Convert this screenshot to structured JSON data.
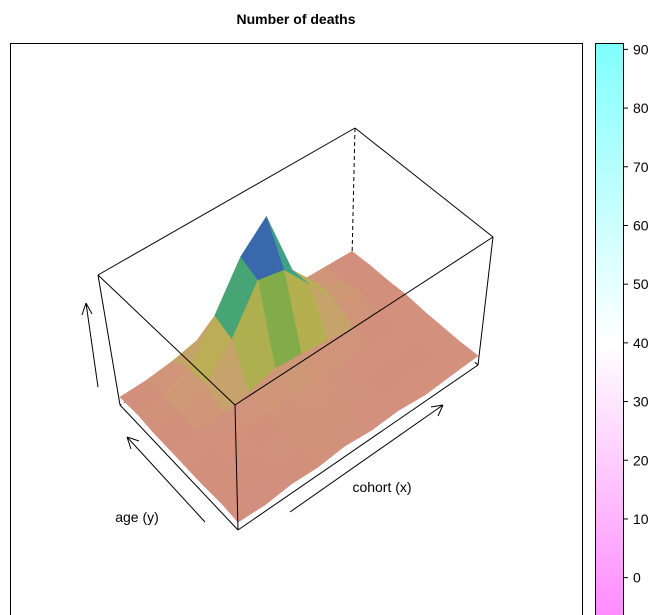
{
  "chart_data": {
    "type": "surface",
    "title": "Number of deaths",
    "xlabel": "cohort (x)",
    "ylabel": "age (y)",
    "z": [
      [
        1,
        0,
        2,
        1,
        3,
        1,
        2,
        0,
        1,
        2
      ],
      [
        2,
        1,
        1,
        3,
        2,
        2,
        1,
        3,
        1,
        1
      ],
      [
        1,
        3,
        2,
        2,
        4,
        3,
        2,
        1,
        2,
        1
      ],
      [
        1,
        2,
        1,
        2,
        3,
        2,
        1,
        2,
        1,
        1
      ],
      [
        1,
        2,
        3,
        6,
        11,
        9,
        6,
        3,
        1,
        2
      ],
      [
        1,
        3,
        12,
        33,
        65,
        60,
        36,
        11,
        3,
        1
      ],
      [
        2,
        3,
        11,
        38,
        70,
        88,
        35,
        12,
        2,
        1
      ],
      [
        1,
        1,
        3,
        7,
        12,
        10,
        6,
        2,
        1,
        0
      ]
    ],
    "zlim": [
      -5,
      91
    ],
    "zticks": [
      0,
      10,
      20,
      30,
      40,
      50,
      60,
      70,
      80,
      90
    ],
    "colorkey_colors": [
      "#FF80FF",
      "#FFFFFF",
      "#80FFFF"
    ],
    "surface_colors": [
      "#d98585",
      "#c9a070",
      "#b8b050",
      "#5aa845",
      "#35a0a0",
      "#3a55b0",
      "#8a3aa0"
    ]
  }
}
